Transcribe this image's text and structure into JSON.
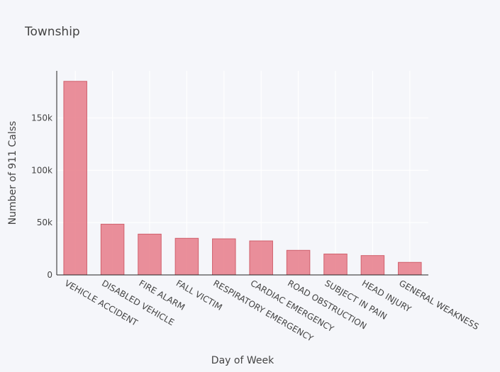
{
  "chart_data": {
    "type": "bar",
    "title": "Township",
    "xlabel": "Day of Week",
    "ylabel": "Number of 911 Calss",
    "categories": [
      "VEHICLE ACCIDENT",
      "DISABLED VEHICLE",
      "FIRE ALARM",
      "FALL VICTIM",
      "RESPIRATORY EMERGENCY",
      "CARDIAC EMERGENCY",
      "ROAD OBSTRUCTION",
      "SUBJECT IN PAIN",
      "HEAD INJURY",
      "GENERAL WEAKNESS"
    ],
    "values": [
      185000,
      48500,
      39000,
      35000,
      34500,
      32500,
      23500,
      20000,
      18500,
      12000
    ],
    "ylim": [
      0,
      195000
    ],
    "yticks": [
      {
        "value": 0,
        "label": "0"
      },
      {
        "value": 50000,
        "label": "50k"
      },
      {
        "value": 100000,
        "label": "100k"
      },
      {
        "value": 150000,
        "label": "150k"
      }
    ],
    "grid": true,
    "color": "#e8838f"
  }
}
